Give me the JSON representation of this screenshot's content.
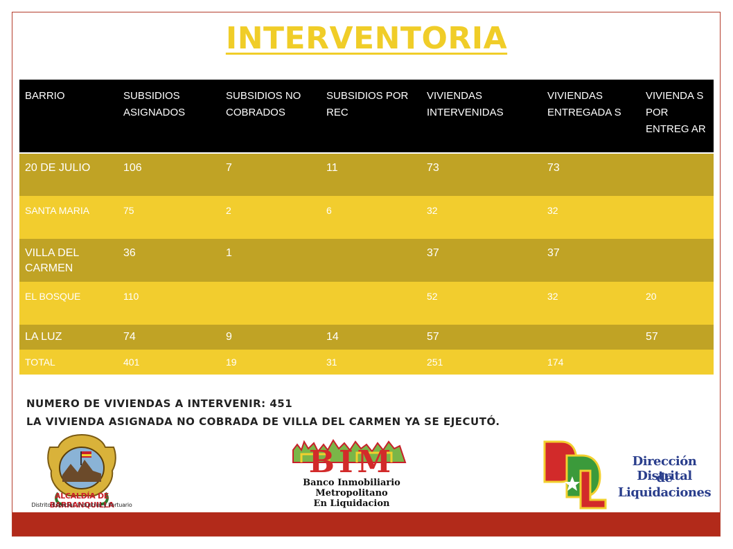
{
  "title": "INTERVENTORIA",
  "table": {
    "headers": [
      "BARRIO",
      "SUBSIDIOS ASIGNADOS",
      "SUBSIDIOS NO COBRADOS",
      "SUBSIDIOS POR REC",
      "VIVIENDAS INTERVENIDAS",
      "VIVIENDAS ENTREGADA S",
      "VIVIENDA S POR ENTREG AR"
    ],
    "rows": [
      [
        "20 DE JULIO",
        "106",
        "7",
        "11",
        "73",
        "73",
        ""
      ],
      [
        "SANTA MARIA",
        "75",
        "2",
        "6",
        "32",
        "32",
        ""
      ],
      [
        "VILLA DEL CARMEN",
        "36",
        "1",
        "",
        "37",
        "37",
        ""
      ],
      [
        "EL BOSQUE",
        "110",
        "",
        "",
        "52",
        "32",
        "20"
      ],
      [
        "LA LUZ",
        "74",
        "9",
        "14",
        "57",
        "",
        "57"
      ],
      [
        "TOTAL",
        "401",
        "19",
        "31",
        "251",
        "174",
        ""
      ]
    ]
  },
  "notes": [
    "NUMERO DE VIVIENDAS A INTERVENIR: 451",
    "LA VIVIENDA ASIGNADA NO COBRADA DE VILLA DEL CARMEN YA SE EJECUTÓ."
  ],
  "logos": {
    "alcaldia": {
      "line1": "ALCALDÍA DE BARRANQUILLA",
      "line2": "Distrito Especial, Industrial y Portuario"
    },
    "bim": {
      "mark": "BIM",
      "line1": "Banco Inmobiliario",
      "line2": "Metropolitano",
      "line3": "En Liquidacion"
    },
    "ddl": {
      "line1": "Dirección Distrital",
      "line2": "de Liquidaciones"
    }
  },
  "colors": {
    "title": "#f0cd28",
    "header_bg": "#000000",
    "row_dark": "#c0a325",
    "row_light": "#f2cd2e",
    "bar": "#b22a1a"
  }
}
